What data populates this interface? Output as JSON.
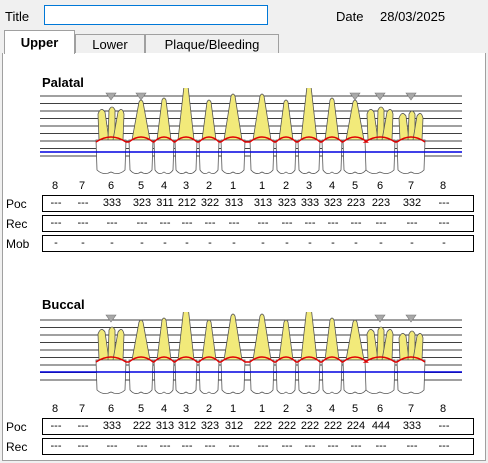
{
  "form": {
    "title_label": "Title",
    "title_value": "",
    "date_label": "Date",
    "date_value": "28/03/2025"
  },
  "tabs": [
    {
      "label": "Upper",
      "active": true
    },
    {
      "label": "Lower",
      "active": false
    },
    {
      "label": "Plaque/Bleeding",
      "active": false
    }
  ],
  "palatal": {
    "title": "Palatal",
    "tooth_numbers": [
      "8",
      "7",
      "6",
      "5",
      "4",
      "3",
      "2",
      "1",
      "1",
      "2",
      "3",
      "4",
      "5",
      "6",
      "7",
      "8"
    ],
    "row_labels": {
      "poc": "Poc",
      "rec": "Rec",
      "mob": "Mob"
    },
    "poc": [
      "---",
      "---",
      "333",
      "323",
      "311",
      "212",
      "322",
      "313",
      "313",
      "323",
      "333",
      "323",
      "223",
      "223",
      "332",
      "---"
    ],
    "rec": [
      "---",
      "---",
      "---",
      "---",
      "---",
      "---",
      "---",
      "---",
      "---",
      "---",
      "---",
      "---",
      "---",
      "---",
      "---",
      "---"
    ],
    "mob": [
      "-",
      "-",
      "-",
      "-",
      "-",
      "-",
      "-",
      "-",
      "-",
      "-",
      "-",
      "-",
      "-",
      "-",
      "-",
      "-"
    ]
  },
  "buccal": {
    "title": "Buccal",
    "tooth_numbers": [
      "8",
      "7",
      "6",
      "5",
      "4",
      "3",
      "2",
      "1",
      "1",
      "2",
      "3",
      "4",
      "5",
      "6",
      "7",
      "8"
    ],
    "row_labels": {
      "poc": "Poc",
      "rec": "Rec"
    },
    "poc": [
      "---",
      "---",
      "333",
      "222",
      "313",
      "312",
      "323",
      "312",
      "222",
      "222",
      "222",
      "222",
      "224",
      "444",
      "333",
      "---"
    ],
    "rec": [
      "---",
      "---",
      "---",
      "---",
      "---",
      "---",
      "---",
      "---",
      "---",
      "---",
      "---",
      "---",
      "---",
      "---",
      "---",
      "---"
    ]
  },
  "colors": {
    "gum_line": "#e00000",
    "bone_line": "#0000e0",
    "crown_fill": "#ffffff",
    "root_fill": "#f2ea7a",
    "implant_marker": "#a8a8a8"
  }
}
